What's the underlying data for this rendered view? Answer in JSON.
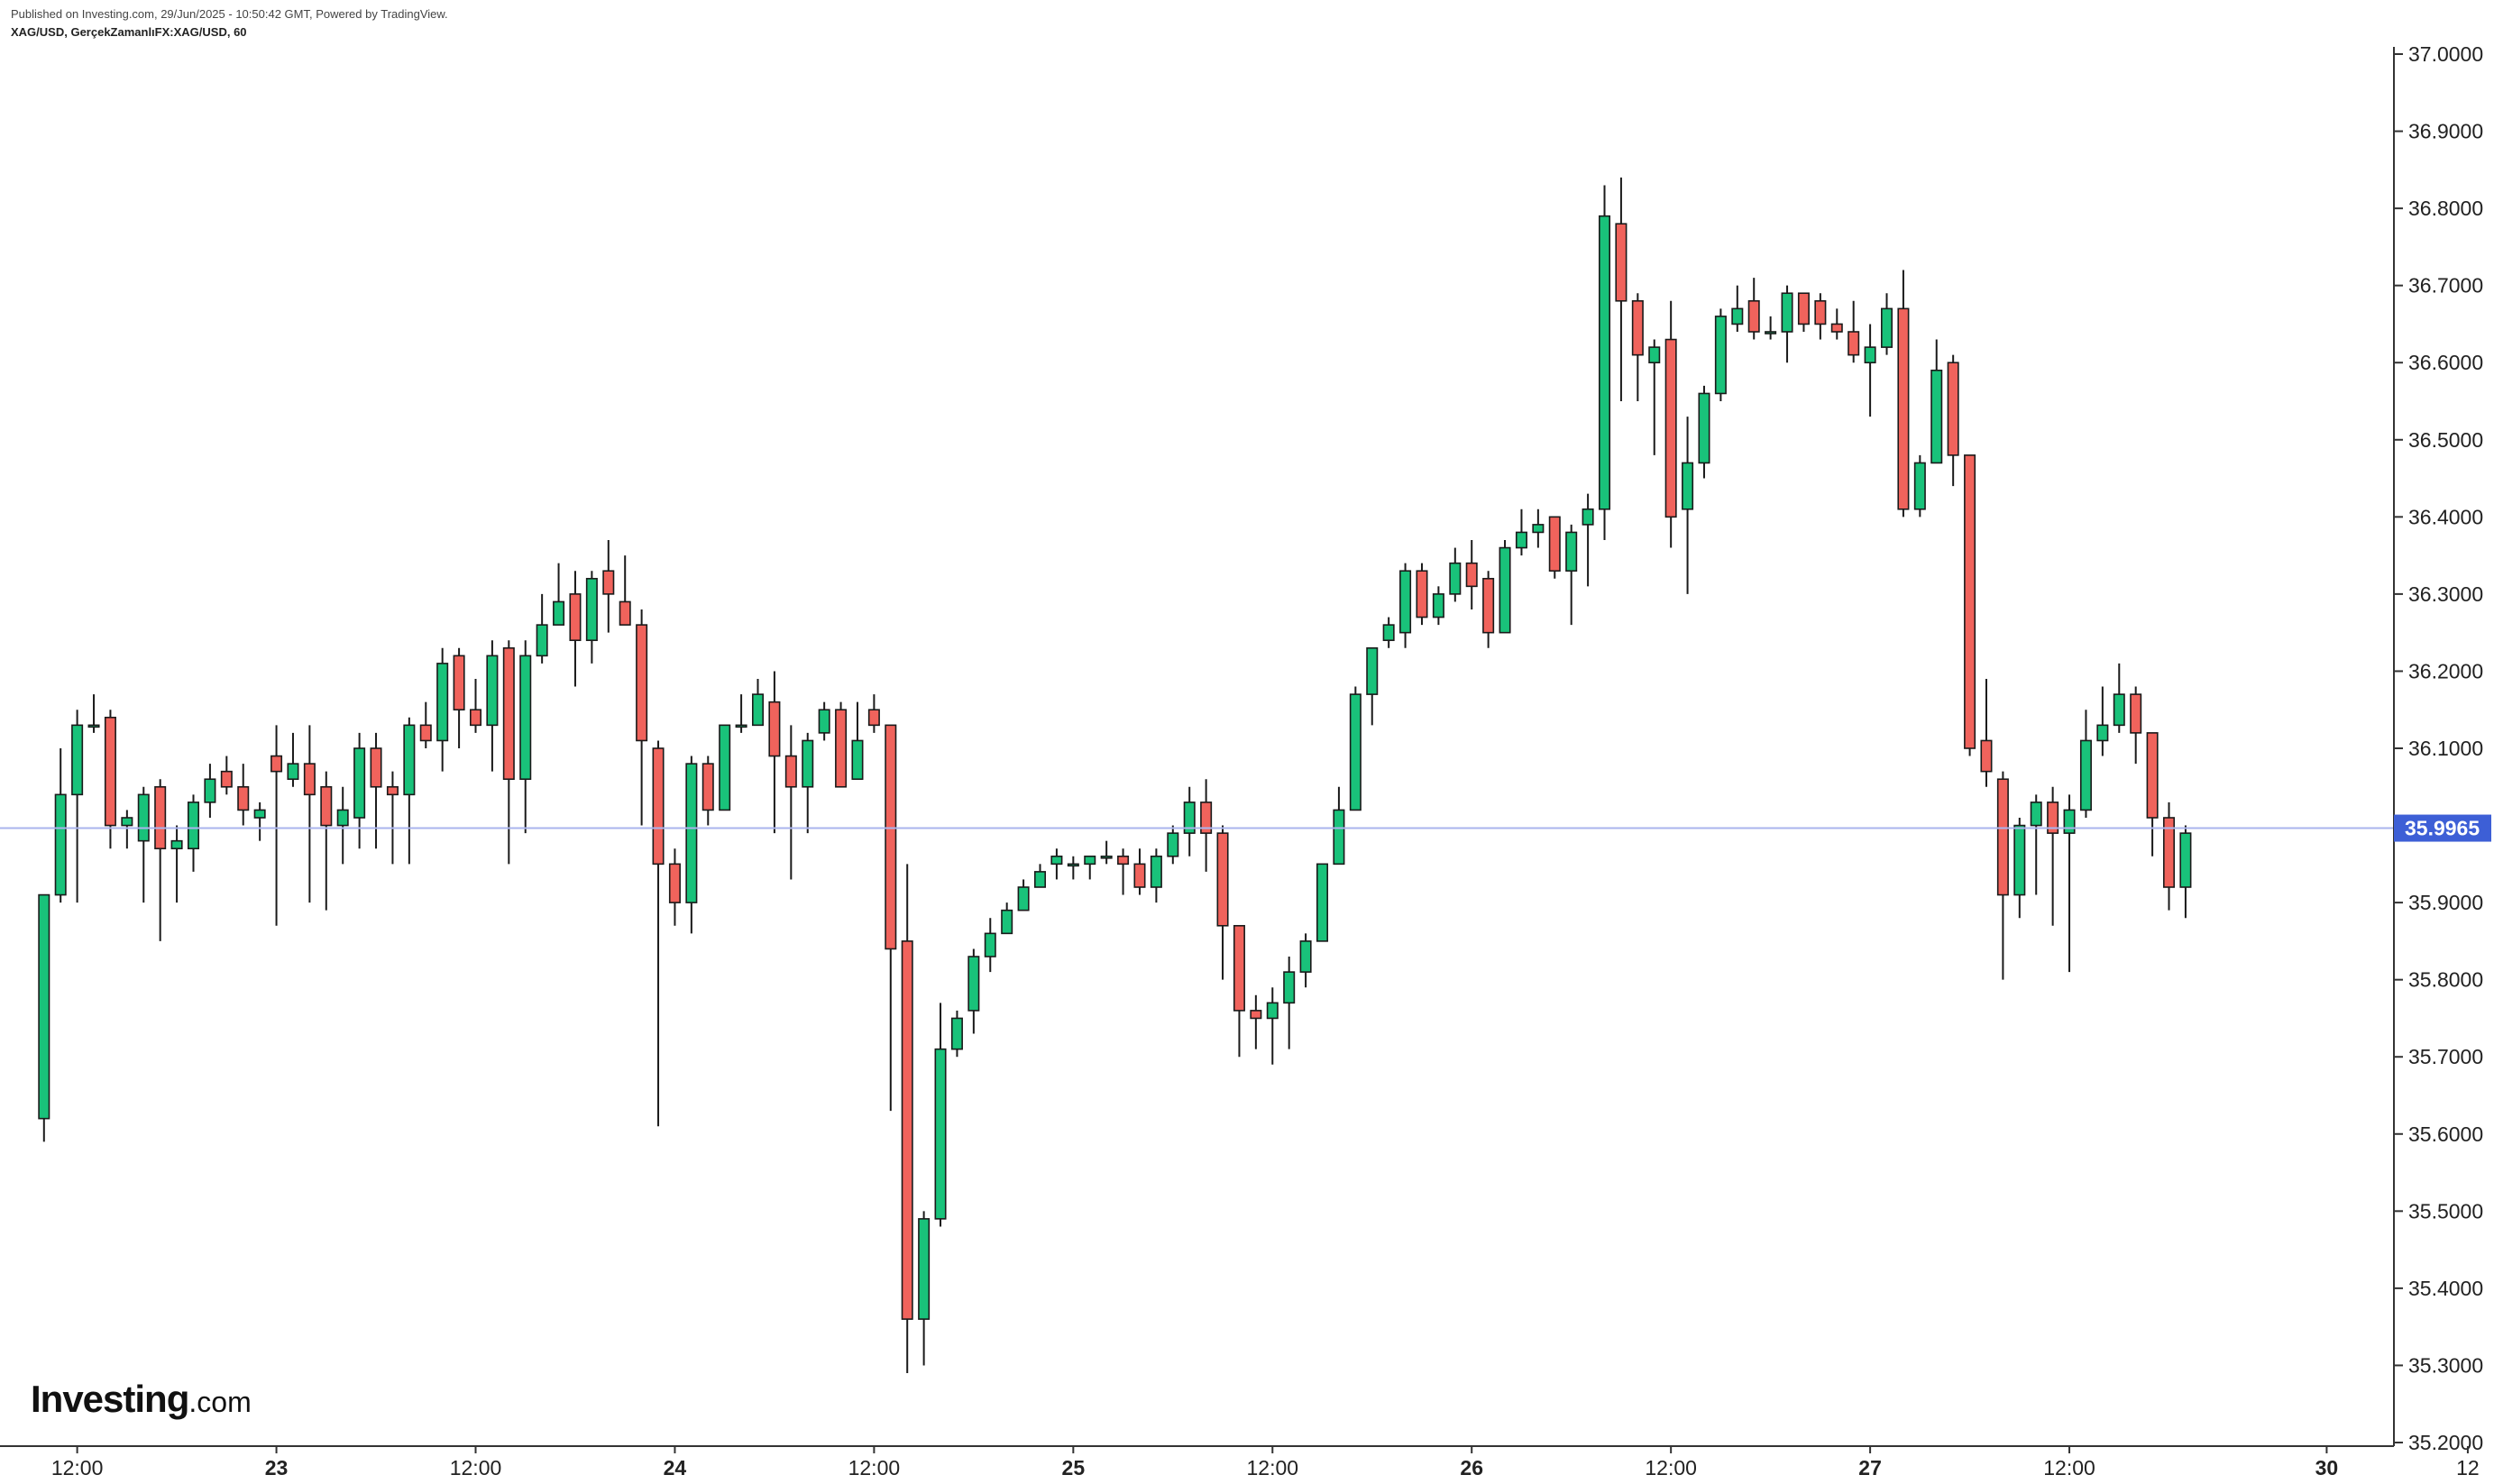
{
  "header": {
    "published": "Published on Investing.com, 29/Jun/2025 - 10:50:42 GMT, Powered by TradingView.",
    "symbol": "XAG/USD, GerçekZamanlıFX:XAG/USD, 60"
  },
  "logo": {
    "main": "Investing",
    "sub": ".com"
  },
  "colors": {
    "up": "#19c27a",
    "down": "#f0635c",
    "wick": "#1a1a1a",
    "last_price_line": "#aab4ee",
    "last_price_badge": "#3d5fd6"
  },
  "chart_data": {
    "type": "candlestick",
    "last_price": 35.9965,
    "last_price_label": "35.9965",
    "ylim": [
      35.2,
      37.0
    ],
    "y_ticks": [
      {
        "v": 37.0,
        "label": "37.0000"
      },
      {
        "v": 36.9,
        "label": "36.9000"
      },
      {
        "v": 36.8,
        "label": "36.8000"
      },
      {
        "v": 36.7,
        "label": "36.7000"
      },
      {
        "v": 36.6,
        "label": "36.6000"
      },
      {
        "v": 36.5,
        "label": "36.5000"
      },
      {
        "v": 36.4,
        "label": "36.4000"
      },
      {
        "v": 36.3,
        "label": "36.3000"
      },
      {
        "v": 36.2,
        "label": "36.2000"
      },
      {
        "v": 36.1,
        "label": "36.1000"
      },
      {
        "v": 36.0,
        "label": "36.0000"
      },
      {
        "v": 35.9,
        "label": "35.9000"
      },
      {
        "v": 35.8,
        "label": "35.8000"
      },
      {
        "v": 35.7,
        "label": "35.7000"
      },
      {
        "v": 35.6,
        "label": "35.6000"
      },
      {
        "v": 35.5,
        "label": "35.5000"
      },
      {
        "v": 35.4,
        "label": "35.4000"
      },
      {
        "v": 35.3,
        "label": "35.3000"
      },
      {
        "v": 35.2,
        "label": "35.2000"
      }
    ],
    "x_range": [
      -2.65,
      141.55
    ],
    "x_ticks": [
      {
        "i": 2,
        "label": "12:00",
        "bold": false
      },
      {
        "i": 14,
        "label": "23",
        "bold": true
      },
      {
        "i": 26,
        "label": "12:00",
        "bold": false
      },
      {
        "i": 38,
        "label": "24",
        "bold": true
      },
      {
        "i": 50,
        "label": "12:00",
        "bold": false
      },
      {
        "i": 62,
        "label": "25",
        "bold": true
      },
      {
        "i": 74,
        "label": "12:00",
        "bold": false
      },
      {
        "i": 86,
        "label": "26",
        "bold": true
      },
      {
        "i": 98,
        "label": "12:00",
        "bold": false
      },
      {
        "i": 110,
        "label": "27",
        "bold": true
      },
      {
        "i": 122,
        "label": "12:00",
        "bold": false
      },
      {
        "i": 137.5,
        "label": "30",
        "bold": true
      },
      {
        "i": 146,
        "label": "12",
        "bold": false
      }
    ],
    "candles": [
      [
        35.62,
        35.91,
        35.59,
        35.91
      ],
      [
        35.91,
        36.04,
        35.9,
        36.1
      ],
      [
        36.04,
        36.13,
        35.9,
        36.15
      ],
      [
        36.13,
        36.13,
        36.12,
        36.17
      ],
      [
        36.14,
        36.0,
        35.97,
        36.15
      ],
      [
        36.0,
        36.01,
        35.97,
        36.02
      ],
      [
        35.98,
        36.04,
        35.9,
        36.05
      ],
      [
        36.05,
        35.97,
        35.85,
        36.06
      ],
      [
        35.97,
        35.98,
        35.9,
        36.0
      ],
      [
        35.97,
        36.03,
        35.94,
        36.04
      ],
      [
        36.03,
        36.06,
        36.01,
        36.08
      ],
      [
        36.07,
        36.05,
        36.04,
        36.09
      ],
      [
        36.05,
        36.02,
        36.0,
        36.08
      ],
      [
        36.01,
        36.02,
        35.98,
        36.03
      ],
      [
        36.09,
        36.07,
        35.87,
        36.13
      ],
      [
        36.06,
        36.08,
        36.05,
        36.12
      ],
      [
        36.08,
        36.04,
        35.9,
        36.13
      ],
      [
        36.05,
        36.0,
        35.89,
        36.07
      ],
      [
        36.0,
        36.02,
        35.95,
        36.05
      ],
      [
        36.01,
        36.1,
        35.97,
        36.12
      ],
      [
        36.1,
        36.05,
        35.97,
        36.12
      ],
      [
        36.05,
        36.04,
        35.95,
        36.07
      ],
      [
        36.04,
        36.13,
        35.95,
        36.14
      ],
      [
        36.13,
        36.11,
        36.1,
        36.16
      ],
      [
        36.11,
        36.21,
        36.07,
        36.23
      ],
      [
        36.22,
        36.15,
        36.1,
        36.23
      ],
      [
        36.15,
        36.13,
        36.12,
        36.19
      ],
      [
        36.13,
        36.22,
        36.07,
        36.24
      ],
      [
        36.23,
        36.06,
        35.95,
        36.24
      ],
      [
        36.06,
        36.22,
        35.99,
        36.24
      ],
      [
        36.22,
        36.26,
        36.21,
        36.3
      ],
      [
        36.26,
        36.29,
        36.27,
        36.34
      ],
      [
        36.3,
        36.24,
        36.18,
        36.33
      ],
      [
        36.24,
        36.32,
        36.21,
        36.33
      ],
      [
        36.33,
        36.3,
        36.25,
        36.37
      ],
      [
        36.29,
        36.26,
        36.26,
        36.35
      ],
      [
        36.26,
        36.11,
        36.0,
        36.28
      ],
      [
        36.1,
        35.95,
        35.61,
        36.11
      ],
      [
        35.95,
        35.9,
        35.87,
        35.97
      ],
      [
        35.9,
        36.08,
        35.86,
        36.09
      ],
      [
        36.08,
        36.02,
        36.0,
        36.09
      ],
      [
        36.02,
        36.13,
        36.02,
        36.13
      ],
      [
        36.13,
        36.13,
        36.12,
        36.17
      ],
      [
        36.13,
        36.17,
        36.14,
        36.19
      ],
      [
        36.16,
        36.09,
        35.99,
        36.2
      ],
      [
        36.09,
        36.05,
        35.93,
        36.13
      ],
      [
        36.05,
        36.11,
        35.99,
        36.12
      ],
      [
        36.12,
        36.15,
        36.11,
        36.16
      ],
      [
        36.15,
        36.05,
        36.05,
        36.16
      ],
      [
        36.06,
        36.11,
        36.06,
        36.16
      ],
      [
        36.15,
        36.13,
        36.12,
        36.17
      ],
      [
        36.13,
        35.84,
        35.63,
        36.13
      ],
      [
        35.85,
        35.36,
        35.29,
        35.95
      ],
      [
        35.36,
        35.49,
        35.3,
        35.5
      ],
      [
        35.49,
        35.71,
        35.48,
        35.77
      ],
      [
        35.71,
        35.75,
        35.7,
        35.76
      ],
      [
        35.76,
        35.83,
        35.73,
        35.84
      ],
      [
        35.83,
        35.86,
        35.81,
        35.88
      ],
      [
        35.86,
        35.89,
        35.86,
        35.9
      ],
      [
        35.89,
        35.92,
        35.89,
        35.93
      ],
      [
        35.92,
        35.94,
        35.92,
        35.95
      ],
      [
        35.95,
        35.96,
        35.93,
        35.97
      ],
      [
        35.95,
        35.95,
        35.93,
        35.96
      ],
      [
        35.95,
        35.96,
        35.93,
        35.96
      ],
      [
        35.96,
        35.96,
        35.95,
        35.98
      ],
      [
        35.96,
        35.95,
        35.91,
        35.97
      ],
      [
        35.95,
        35.92,
        35.91,
        35.97
      ],
      [
        35.92,
        35.96,
        35.9,
        35.97
      ],
      [
        35.96,
        35.99,
        35.95,
        36.0
      ],
      [
        35.99,
        36.03,
        35.96,
        36.05
      ],
      [
        36.03,
        35.99,
        35.94,
        36.06
      ],
      [
        35.99,
        35.87,
        35.8,
        36.0
      ],
      [
        35.87,
        35.76,
        35.7,
        35.87
      ],
      [
        35.76,
        35.75,
        35.71,
        35.78
      ],
      [
        35.75,
        35.77,
        35.69,
        35.79
      ],
      [
        35.77,
        35.81,
        35.71,
        35.83
      ],
      [
        35.81,
        35.85,
        35.79,
        35.86
      ],
      [
        35.85,
        35.95,
        35.85,
        35.95
      ],
      [
        35.95,
        36.02,
        35.95,
        36.05
      ],
      [
        36.02,
        36.17,
        36.02,
        36.18
      ],
      [
        36.17,
        36.23,
        36.13,
        36.23
      ],
      [
        36.24,
        36.26,
        36.23,
        36.27
      ],
      [
        36.25,
        36.33,
        36.23,
        36.34
      ],
      [
        36.33,
        36.27,
        36.26,
        36.34
      ],
      [
        36.27,
        36.3,
        36.26,
        36.31
      ],
      [
        36.3,
        36.34,
        36.29,
        36.36
      ],
      [
        36.34,
        36.31,
        36.28,
        36.37
      ],
      [
        36.32,
        36.25,
        36.23,
        36.33
      ],
      [
        36.25,
        36.36,
        36.25,
        36.37
      ],
      [
        36.36,
        36.38,
        36.35,
        36.41
      ],
      [
        36.38,
        36.39,
        36.36,
        36.41
      ],
      [
        36.4,
        36.33,
        36.32,
        36.4
      ],
      [
        36.33,
        36.38,
        36.26,
        36.39
      ],
      [
        36.39,
        36.41,
        36.31,
        36.43
      ],
      [
        36.41,
        36.79,
        36.37,
        36.83
      ],
      [
        36.78,
        36.68,
        36.55,
        36.84
      ],
      [
        36.68,
        36.61,
        36.55,
        36.69
      ],
      [
        36.6,
        36.62,
        36.48,
        36.63
      ],
      [
        36.63,
        36.4,
        36.36,
        36.68
      ],
      [
        36.41,
        36.47,
        36.3,
        36.53
      ],
      [
        36.47,
        36.56,
        36.45,
        36.57
      ],
      [
        36.56,
        36.66,
        36.55,
        36.67
      ],
      [
        36.65,
        36.67,
        36.64,
        36.7
      ],
      [
        36.68,
        36.64,
        36.63,
        36.71
      ],
      [
        36.64,
        36.64,
        36.63,
        36.66
      ],
      [
        36.64,
        36.69,
        36.6,
        36.7
      ],
      [
        36.69,
        36.65,
        36.64,
        36.69
      ],
      [
        36.68,
        36.65,
        36.63,
        36.69
      ],
      [
        36.65,
        36.64,
        36.63,
        36.67
      ],
      [
        36.64,
        36.61,
        36.6,
        36.68
      ],
      [
        36.6,
        36.62,
        36.53,
        36.65
      ],
      [
        36.62,
        36.67,
        36.61,
        36.69
      ],
      [
        36.67,
        36.41,
        36.4,
        36.72
      ],
      [
        36.41,
        36.47,
        36.4,
        36.48
      ],
      [
        36.47,
        36.59,
        36.47,
        36.63
      ],
      [
        36.6,
        36.48,
        36.44,
        36.61
      ],
      [
        36.48,
        36.1,
        36.09,
        36.48
      ],
      [
        36.11,
        36.07,
        36.05,
        36.19
      ],
      [
        36.06,
        35.91,
        35.8,
        36.07
      ],
      [
        35.91,
        36.0,
        35.88,
        36.01
      ],
      [
        36.0,
        36.03,
        35.91,
        36.04
      ],
      [
        36.03,
        35.99,
        35.87,
        36.05
      ],
      [
        35.99,
        36.02,
        35.81,
        36.04
      ],
      [
        36.02,
        36.11,
        36.01,
        36.15
      ],
      [
        36.11,
        36.13,
        36.09,
        36.18
      ],
      [
        36.13,
        36.17,
        36.12,
        36.21
      ],
      [
        36.17,
        36.12,
        36.08,
        36.18
      ],
      [
        36.12,
        36.01,
        35.96,
        36.12
      ],
      [
        36.01,
        35.92,
        35.89,
        36.03
      ],
      [
        35.92,
        35.99,
        35.88,
        36.0
      ]
    ]
  }
}
